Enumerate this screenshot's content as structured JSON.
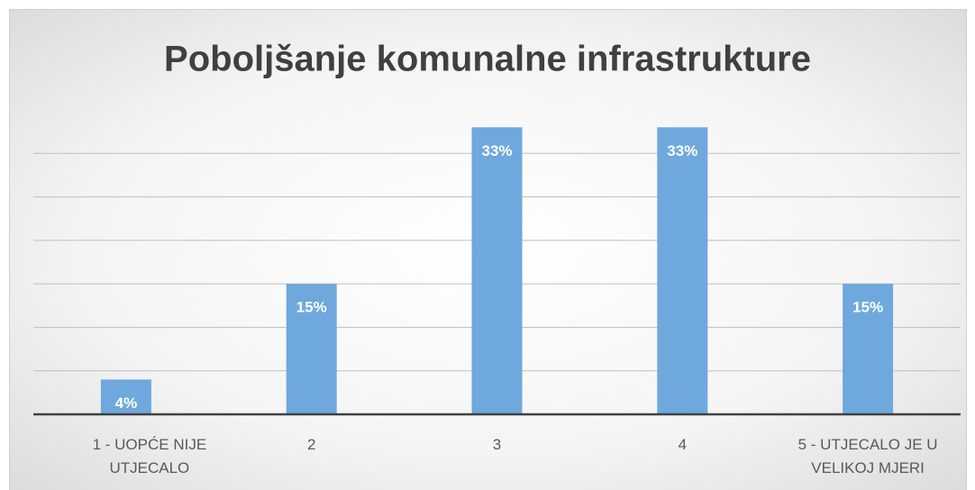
{
  "chart_data": {
    "type": "bar",
    "title": "Poboljšanje komunalne infrastrukture",
    "categories": [
      "1 - UOPĆE NIJE UTJECALO",
      "2",
      "3",
      "4",
      "5 - UTJECALO JE U VELIKOJ MJERI"
    ],
    "values": [
      4,
      15,
      33,
      33,
      15
    ],
    "value_labels": [
      "4%",
      "15%",
      "33%",
      "33%",
      "15%"
    ],
    "color": "#6fa8dc",
    "ylim": [
      0,
      35
    ],
    "yticks": [
      0,
      5,
      10,
      15,
      20,
      25,
      30
    ],
    "grid": true
  }
}
